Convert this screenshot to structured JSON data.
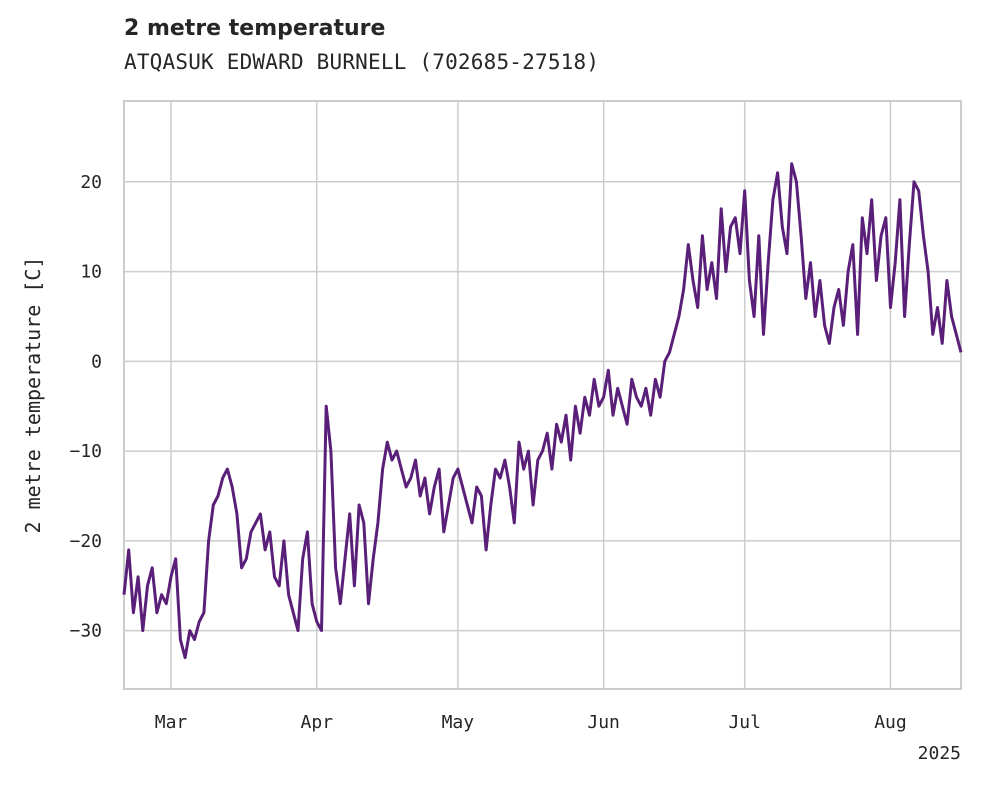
{
  "chart_data": {
    "type": "line",
    "title": "2 metre temperature",
    "subtitle": "ATQASUK EDWARD BURNELL (702685-27518)",
    "ylabel": "2 metre temperature [C]",
    "xlabel": "",
    "year_label": "2025",
    "xlim": [
      "2025-02-19",
      "2025-08-16"
    ],
    "ylim": [
      -36.5,
      29
    ],
    "x_ticks": [
      {
        "date": "2025-03-01",
        "label": "Mar"
      },
      {
        "date": "2025-04-01",
        "label": "Apr"
      },
      {
        "date": "2025-05-01",
        "label": "May"
      },
      {
        "date": "2025-06-01",
        "label": "Jun"
      },
      {
        "date": "2025-07-01",
        "label": "Jul"
      },
      {
        "date": "2025-08-01",
        "label": "Aug"
      }
    ],
    "y_ticks": [
      {
        "value": -30,
        "label": "−30"
      },
      {
        "value": -20,
        "label": "−20"
      },
      {
        "value": -10,
        "label": "−10"
      },
      {
        "value": 0,
        "label": "0"
      },
      {
        "value": 10,
        "label": "10"
      },
      {
        "value": 20,
        "label": "20"
      }
    ],
    "grid": true,
    "line_color": "#5a1f78",
    "grid_color": "#cccccc",
    "series": [
      {
        "x": [
          "2025-02-19",
          "2025-02-20",
          "2025-02-21",
          "2025-02-22",
          "2025-02-23",
          "2025-02-24",
          "2025-02-25",
          "2025-02-26",
          "2025-02-27",
          "2025-02-28",
          "2025-03-01",
          "2025-03-02",
          "2025-03-03",
          "2025-03-04",
          "2025-03-05",
          "2025-03-06",
          "2025-03-07",
          "2025-03-08",
          "2025-03-09",
          "2025-03-10",
          "2025-03-11",
          "2025-03-12",
          "2025-03-13",
          "2025-03-14",
          "2025-03-15",
          "2025-03-16",
          "2025-03-17",
          "2025-03-18",
          "2025-03-19",
          "2025-03-20",
          "2025-03-21",
          "2025-03-22",
          "2025-03-23",
          "2025-03-24",
          "2025-03-25",
          "2025-03-26",
          "2025-03-27",
          "2025-03-28",
          "2025-03-29",
          "2025-03-30",
          "2025-03-31",
          "2025-04-01",
          "2025-04-02",
          "2025-04-03",
          "2025-04-04",
          "2025-04-05",
          "2025-04-06",
          "2025-04-07",
          "2025-04-08",
          "2025-04-09",
          "2025-04-10",
          "2025-04-11",
          "2025-04-12",
          "2025-04-13",
          "2025-04-14",
          "2025-04-15",
          "2025-04-16",
          "2025-04-17",
          "2025-04-18",
          "2025-04-19",
          "2025-04-20",
          "2025-04-21",
          "2025-04-22",
          "2025-04-23",
          "2025-04-24",
          "2025-04-25",
          "2025-04-26",
          "2025-04-27",
          "2025-04-28",
          "2025-04-29",
          "2025-04-30",
          "2025-05-01",
          "2025-05-02",
          "2025-05-03",
          "2025-05-04",
          "2025-05-05",
          "2025-05-06",
          "2025-05-07",
          "2025-05-08",
          "2025-05-09",
          "2025-05-10",
          "2025-05-11",
          "2025-05-12",
          "2025-05-13",
          "2025-05-14",
          "2025-05-15",
          "2025-05-16",
          "2025-05-17",
          "2025-05-18",
          "2025-05-19",
          "2025-05-20",
          "2025-05-21",
          "2025-05-22",
          "2025-05-23",
          "2025-05-24",
          "2025-05-25",
          "2025-05-26",
          "2025-05-27",
          "2025-05-28",
          "2025-05-29",
          "2025-05-30",
          "2025-05-31",
          "2025-06-01",
          "2025-06-02",
          "2025-06-03",
          "2025-06-04",
          "2025-06-05",
          "2025-06-06",
          "2025-06-07",
          "2025-06-08",
          "2025-06-09",
          "2025-06-10",
          "2025-06-11",
          "2025-06-12",
          "2025-06-13",
          "2025-06-14",
          "2025-06-15",
          "2025-06-16",
          "2025-06-17",
          "2025-06-18",
          "2025-06-19",
          "2025-06-20",
          "2025-06-21",
          "2025-06-22",
          "2025-06-23",
          "2025-06-24",
          "2025-06-25",
          "2025-06-26",
          "2025-06-27",
          "2025-06-28",
          "2025-06-29",
          "2025-06-30",
          "2025-07-01",
          "2025-07-02",
          "2025-07-03",
          "2025-07-04",
          "2025-07-05",
          "2025-07-06",
          "2025-07-07",
          "2025-07-08",
          "2025-07-09",
          "2025-07-10",
          "2025-07-11",
          "2025-07-12",
          "2025-07-13",
          "2025-07-14",
          "2025-07-15",
          "2025-07-16",
          "2025-07-17",
          "2025-07-18",
          "2025-07-19",
          "2025-07-20",
          "2025-07-21",
          "2025-07-22",
          "2025-07-23",
          "2025-07-24",
          "2025-07-25",
          "2025-07-26",
          "2025-07-27",
          "2025-07-28",
          "2025-07-29",
          "2025-07-30",
          "2025-07-31",
          "2025-08-01",
          "2025-08-02",
          "2025-08-03",
          "2025-08-04",
          "2025-08-05",
          "2025-08-06",
          "2025-08-07",
          "2025-08-08",
          "2025-08-09",
          "2025-08-10",
          "2025-08-11",
          "2025-08-12",
          "2025-08-13",
          "2025-08-14",
          "2025-08-15",
          "2025-08-16"
        ],
        "y": [
          -26,
          -21,
          -28,
          -24,
          -30,
          -25,
          -23,
          -28,
          -26,
          -27,
          -24,
          -22,
          -31,
          -33,
          -30,
          -31,
          -29,
          -28,
          -20,
          -16,
          -15,
          -13,
          -12,
          -14,
          -17,
          -23,
          -22,
          -19,
          -18,
          -17,
          -21,
          -19,
          -24,
          -25,
          -20,
          -26,
          -28,
          -30,
          -22,
          -19,
          -27,
          -29,
          -30,
          -5,
          -10,
          -23,
          -27,
          -22,
          -17,
          -25,
          -16,
          -18,
          -27,
          -22,
          -18,
          -12,
          -9,
          -11,
          -10,
          -12,
          -14,
          -13,
          -11,
          -15,
          -13,
          -17,
          -14,
          -12,
          -19,
          -16,
          -13,
          -12,
          -14,
          -16,
          -18,
          -14,
          -15,
          -21,
          -16,
          -12,
          -13,
          -11,
          -14,
          -18,
          -9,
          -12,
          -10,
          -16,
          -11,
          -10,
          -8,
          -12,
          -7,
          -9,
          -6,
          -11,
          -5,
          -8,
          -4,
          -6,
          -2,
          -5,
          -4,
          -1,
          -6,
          -3,
          -5,
          -7,
          -2,
          -4,
          -5,
          -3,
          -6,
          -2,
          -4,
          0,
          1,
          3,
          5,
          8,
          13,
          9,
          6,
          14,
          8,
          11,
          7,
          17,
          10,
          15,
          16,
          12,
          19,
          9,
          5,
          14,
          3,
          11,
          18,
          21,
          15,
          12,
          22,
          20,
          14,
          7,
          11,
          5,
          9,
          4,
          2,
          6,
          8,
          4,
          10,
          13,
          3,
          16,
          12,
          18,
          9,
          14,
          16,
          6,
          11,
          18,
          5,
          13,
          20,
          19,
          14,
          10,
          3,
          6,
          2,
          9,
          5,
          3,
          1
        ]
      }
    ]
  }
}
